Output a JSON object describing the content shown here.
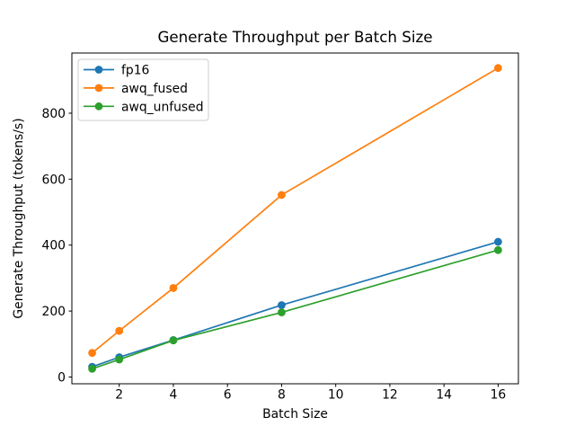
{
  "chart_data": {
    "type": "line",
    "title": "Generate Throughput per Batch Size",
    "xlabel": "Batch Size",
    "ylabel": "Generate Throughput (tokens/s)",
    "x": [
      1,
      2,
      4,
      8,
      16
    ],
    "series": [
      {
        "name": "fp16",
        "color": "#1f77b4",
        "values": [
          31,
          60,
          112,
          218,
          410
        ]
      },
      {
        "name": "awq_fused",
        "color": "#ff7f0e",
        "values": [
          73,
          140,
          270,
          552,
          937
        ]
      },
      {
        "name": "awq_unfused",
        "color": "#2ca02c",
        "values": [
          25,
          53,
          111,
          196,
          385
        ]
      }
    ],
    "xticks": [
      2,
      4,
      6,
      8,
      10,
      12,
      14,
      16
    ],
    "yticks": [
      0,
      200,
      400,
      600,
      800
    ],
    "xlim": [
      0.25,
      16.75
    ],
    "ylim": [
      -20.5,
      982.5
    ],
    "grid": false,
    "legend_position": "upper left",
    "marker": "o",
    "line_width": 1.7,
    "marker_radius": 4.4,
    "background": "#ffffff",
    "axis_color": "#000000",
    "text_color": "#000000",
    "legend_border_color": "#cccccc"
  }
}
